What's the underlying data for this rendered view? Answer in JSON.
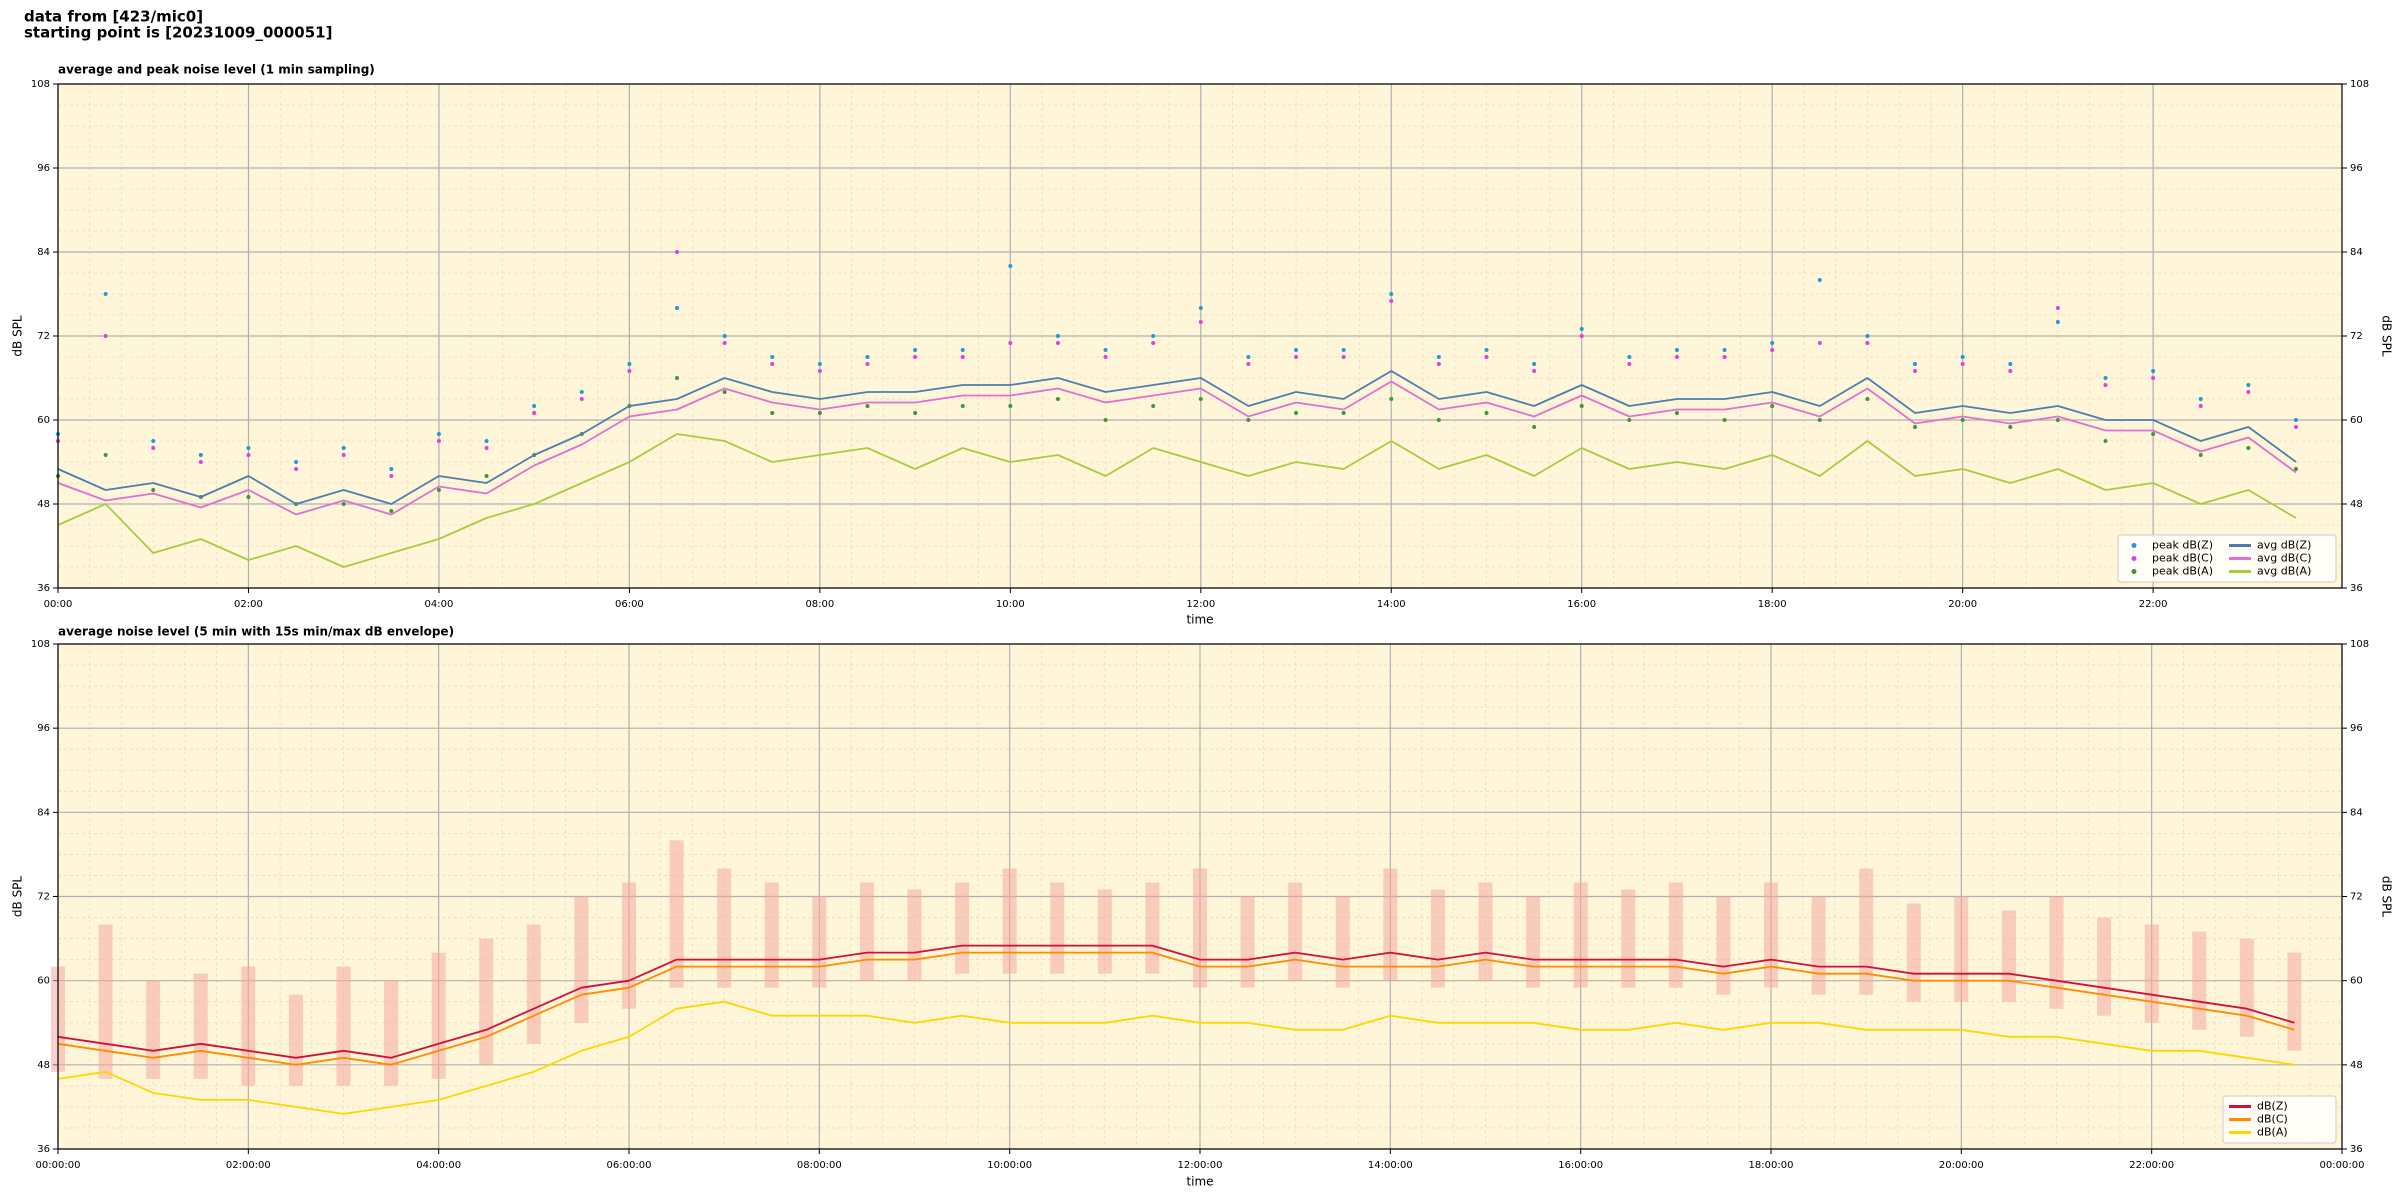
{
  "header": [
    "data from [423/mic0]",
    "starting point is [20231009_000051]"
  ],
  "chart_data": [
    {
      "type": "line",
      "title": "average and peak noise level (1 min sampling)",
      "xlabel": "time",
      "ylabel": "dB SPL",
      "background": "#fff5d9",
      "grid": true,
      "minor_grid": true,
      "legend": "lower right",
      "legend_columns": 2,
      "x": [
        "00:00",
        "00:30",
        "01:00",
        "01:30",
        "02:00",
        "02:30",
        "03:00",
        "03:30",
        "04:00",
        "04:30",
        "05:00",
        "05:30",
        "06:00",
        "06:30",
        "07:00",
        "07:30",
        "08:00",
        "08:30",
        "09:00",
        "09:30",
        "10:00",
        "10:30",
        "11:00",
        "11:30",
        "12:00",
        "12:30",
        "13:00",
        "13:30",
        "14:00",
        "14:30",
        "15:00",
        "15:30",
        "16:00",
        "16:30",
        "17:00",
        "17:30",
        "18:00",
        "18:30",
        "19:00",
        "19:30",
        "20:00",
        "20:30",
        "21:00",
        "21:30",
        "22:00",
        "22:30",
        "23:00",
        "23:30"
      ],
      "xlim": [
        "00:00",
        "23:59"
      ],
      "xticks": [
        "00:00",
        "02:00",
        "04:00",
        "06:00",
        "08:00",
        "10:00",
        "12:00",
        "14:00",
        "16:00",
        "18:00",
        "20:00",
        "22:00"
      ],
      "ylim": [
        36,
        108
      ],
      "yticks": [
        36,
        48,
        60,
        72,
        84,
        96,
        108
      ],
      "series": [
        {
          "name": "peak dB(Z)",
          "kind": "points",
          "color": "#1f9bd6",
          "values": [
            58,
            78,
            57,
            55,
            56,
            54,
            56,
            53,
            58,
            57,
            62,
            64,
            68,
            76,
            72,
            69,
            68,
            69,
            70,
            70,
            82,
            72,
            70,
            72,
            76,
            69,
            70,
            70,
            78,
            69,
            70,
            68,
            73,
            69,
            70,
            70,
            71,
            80,
            72,
            68,
            69,
            68,
            74,
            66,
            67,
            63,
            65,
            60
          ]
        },
        {
          "name": "peak dB(C)",
          "kind": "points",
          "color": "#e040e0",
          "values": [
            57,
            72,
            56,
            54,
            55,
            53,
            55,
            52,
            57,
            56,
            61,
            63,
            67,
            84,
            71,
            68,
            67,
            68,
            69,
            69,
            71,
            71,
            69,
            71,
            74,
            68,
            69,
            69,
            77,
            68,
            69,
            67,
            72,
            68,
            69,
            69,
            70,
            71,
            71,
            67,
            68,
            67,
            76,
            65,
            66,
            62,
            64,
            59
          ]
        },
        {
          "name": "peak dB(A)",
          "kind": "points",
          "color": "#3a9a3a",
          "values": [
            52,
            55,
            50,
            49,
            49,
            48,
            48,
            47,
            50,
            52,
            55,
            58,
            62,
            66,
            64,
            61,
            61,
            62,
            61,
            62,
            62,
            63,
            60,
            62,
            63,
            60,
            61,
            61,
            63,
            60,
            61,
            59,
            62,
            60,
            61,
            60,
            62,
            60,
            63,
            59,
            60,
            59,
            60,
            57,
            58,
            55,
            56,
            53
          ]
        },
        {
          "name": "avg dB(Z)",
          "kind": "line",
          "color": "#4a7fb0",
          "values": [
            53,
            50,
            51,
            49,
            52,
            48,
            50,
            48,
            52,
            51,
            55,
            58,
            62,
            63,
            66,
            64,
            63,
            64,
            64,
            65,
            65,
            66,
            64,
            65,
            66,
            62,
            64,
            63,
            67,
            63,
            64,
            62,
            65,
            62,
            63,
            63,
            64,
            62,
            66,
            61,
            62,
            61,
            62,
            60,
            60,
            57,
            59,
            54
          ]
        },
        {
          "name": "avg dB(C)",
          "kind": "line",
          "color": "#e070d0",
          "values": [
            51,
            48.5,
            49.5,
            47.5,
            50,
            46.5,
            48.5,
            46.5,
            50.5,
            49.5,
            53.5,
            56.5,
            60.5,
            61.5,
            64.5,
            62.5,
            61.5,
            62.5,
            62.5,
            63.5,
            63.5,
            64.5,
            62.5,
            63.5,
            64.5,
            60.5,
            62.5,
            61.5,
            65.5,
            61.5,
            62.5,
            60.5,
            63.5,
            60.5,
            61.5,
            61.5,
            62.5,
            60.5,
            64.5,
            59.5,
            60.5,
            59.5,
            60.5,
            58.5,
            58.5,
            55.5,
            57.5,
            52.5
          ]
        },
        {
          "name": "avg dB(A)",
          "kind": "line",
          "color": "#a8cc40",
          "values": [
            45,
            48,
            41,
            43,
            40,
            42,
            39,
            41,
            43,
            46,
            48,
            51,
            54,
            58,
            57,
            54,
            55,
            56,
            53,
            56,
            54,
            55,
            52,
            56,
            54,
            52,
            54,
            53,
            57,
            53,
            55,
            52,
            56,
            53,
            54,
            53,
            55,
            52,
            57,
            52,
            53,
            51,
            53,
            50,
            51,
            48,
            50,
            46
          ]
        }
      ]
    },
    {
      "type": "line",
      "title": "average noise level (5 min with 15s min/max dB envelope)",
      "xlabel": "time",
      "ylabel": "dB SPL",
      "background": "#fff5d9",
      "grid": true,
      "minor_grid": true,
      "legend": "lower right",
      "legend_columns": 1,
      "x": [
        "00:00:00",
        "00:30:00",
        "01:00:00",
        "01:30:00",
        "02:00:00",
        "02:30:00",
        "03:00:00",
        "03:30:00",
        "04:00:00",
        "04:30:00",
        "05:00:00",
        "05:30:00",
        "06:00:00",
        "06:30:00",
        "07:00:00",
        "07:30:00",
        "08:00:00",
        "08:30:00",
        "09:00:00",
        "09:30:00",
        "10:00:00",
        "10:30:00",
        "11:00:00",
        "11:30:00",
        "12:00:00",
        "12:30:00",
        "13:00:00",
        "13:30:00",
        "14:00:00",
        "14:30:00",
        "15:00:00",
        "15:30:00",
        "16:00:00",
        "16:30:00",
        "17:00:00",
        "17:30:00",
        "18:00:00",
        "18:30:00",
        "19:00:00",
        "19:30:00",
        "20:00:00",
        "20:30:00",
        "21:00:00",
        "21:30:00",
        "22:00:00",
        "22:30:00",
        "23:00:00",
        "23:30:00"
      ],
      "xlim": [
        "00:00:00",
        "24:00:00"
      ],
      "xticks": [
        "00:00:00",
        "02:00:00",
        "04:00:00",
        "06:00:00",
        "08:00:00",
        "10:00:00",
        "12:00:00",
        "14:00:00",
        "16:00:00",
        "18:00:00",
        "20:00:00",
        "22:00:00",
        {
          "value": "24:00:00",
          "label": "00:00:00"
        }
      ],
      "ylim": [
        36,
        108
      ],
      "yticks": [
        36,
        48,
        60,
        72,
        84,
        96,
        108
      ],
      "envelope": {
        "color": "#f4a8a0",
        "lower": [
          47,
          46,
          46,
          46,
          45,
          45,
          45,
          45,
          46,
          48,
          51,
          54,
          56,
          59,
          59,
          59,
          59,
          60,
          60,
          61,
          61,
          61,
          61,
          61,
          59,
          59,
          60,
          59,
          60,
          59,
          60,
          59,
          59,
          59,
          59,
          58,
          59,
          58,
          58,
          57,
          57,
          57,
          56,
          55,
          54,
          53,
          52,
          50
        ],
        "upper": [
          62,
          68,
          60,
          61,
          62,
          58,
          62,
          60,
          64,
          66,
          68,
          72,
          74,
          80,
          76,
          74,
          72,
          74,
          73,
          74,
          76,
          74,
          73,
          74,
          76,
          72,
          74,
          72,
          76,
          73,
          74,
          72,
          74,
          73,
          74,
          72,
          74,
          72,
          76,
          71,
          72,
          70,
          72,
          69,
          68,
          67,
          66,
          64
        ]
      },
      "series": [
        {
          "name": "dB(Z)",
          "kind": "line",
          "color": "#d0103a",
          "values": [
            52,
            51,
            50,
            51,
            50,
            49,
            50,
            49,
            51,
            53,
            56,
            59,
            60,
            63,
            63,
            63,
            63,
            64,
            64,
            65,
            65,
            65,
            65,
            65,
            63,
            63,
            64,
            63,
            64,
            63,
            64,
            63,
            63,
            63,
            63,
            62,
            63,
            62,
            62,
            61,
            61,
            61,
            60,
            59,
            58,
            57,
            56,
            54
          ]
        },
        {
          "name": "dB(C)",
          "kind": "line",
          "color": "#ff8c00",
          "values": [
            51,
            50,
            49,
            50,
            49,
            48,
            49,
            48,
            50,
            52,
            55,
            58,
            59,
            62,
            62,
            62,
            62,
            63,
            63,
            64,
            64,
            64,
            64,
            64,
            62,
            62,
            63,
            62,
            62,
            62,
            63,
            62,
            62,
            62,
            62,
            61,
            62,
            61,
            61,
            60,
            60,
            60,
            59,
            58,
            57,
            56,
            55,
            53
          ]
        },
        {
          "name": "dB(A)",
          "kind": "line",
          "color": "#ffd700",
          "values": [
            46,
            47,
            44,
            43,
            43,
            42,
            41,
            42,
            43,
            45,
            47,
            50,
            52,
            56,
            57,
            55,
            55,
            55,
            54,
            55,
            54,
            54,
            54,
            55,
            54,
            54,
            53,
            53,
            55,
            54,
            54,
            54,
            53,
            53,
            54,
            53,
            54,
            54,
            53,
            53,
            53,
            52,
            52,
            51,
            50,
            50,
            49,
            48
          ]
        }
      ]
    }
  ]
}
